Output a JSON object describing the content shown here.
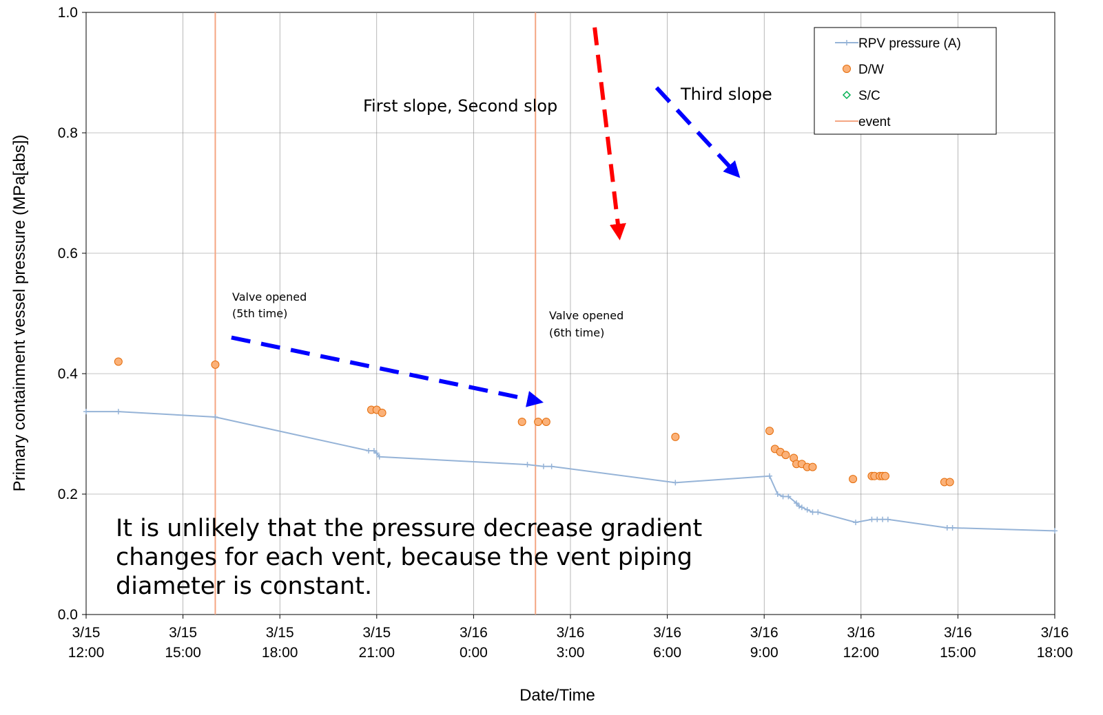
{
  "chart_data": {
    "type": "line",
    "title": "",
    "xlabel": "Date/Time",
    "ylabel": "Primary containment vessel pressure (MPa[abs])",
    "xlim": [
      "3/15 12:00",
      "3/16 18:00"
    ],
    "ylim": [
      0.0,
      1.0
    ],
    "grid": true,
    "legend_position": "top-right",
    "x_ticks": [
      {
        "date": "3/15",
        "time": "12:00"
      },
      {
        "date": "3/15",
        "time": "15:00"
      },
      {
        "date": "3/15",
        "time": "18:00"
      },
      {
        "date": "3/15",
        "time": "21:00"
      },
      {
        "date": "3/16",
        "time": "0:00"
      },
      {
        "date": "3/16",
        "time": "3:00"
      },
      {
        "date": "3/16",
        "time": "6:00"
      },
      {
        "date": "3/16",
        "time": "9:00"
      },
      {
        "date": "3/16",
        "time": "12:00"
      },
      {
        "date": "3/16",
        "time": "15:00"
      },
      {
        "date": "3/16",
        "time": "18:00"
      }
    ],
    "y_ticks": [
      "0.0",
      "0.2",
      "0.4",
      "0.6",
      "0.8",
      "1.0"
    ],
    "series": [
      {
        "name": "RPV pressure (A)",
        "style": "line-plus",
        "color": "#95b3d7",
        "points": [
          [
            "3/15 12:00",
            0.337
          ],
          [
            "3/15 13:00",
            0.337
          ],
          [
            "3/15 16:00",
            0.328
          ],
          [
            "3/15 20:45",
            0.272
          ],
          [
            "3/15 20:55",
            0.272
          ],
          [
            "3/15 21:00",
            0.268
          ],
          [
            "3/15 21:05",
            0.262
          ],
          [
            "3/16 1:40",
            0.249
          ],
          [
            "3/16 2:10",
            0.246
          ],
          [
            "3/16 2:25",
            0.246
          ],
          [
            "3/16 6:15",
            0.219
          ],
          [
            "3/16 9:10",
            0.23
          ],
          [
            "3/16 9:25",
            0.2
          ],
          [
            "3/16 9:35",
            0.196
          ],
          [
            "3/16 9:45",
            0.196
          ],
          [
            "3/16 10:00",
            0.185
          ],
          [
            "3/16 10:05",
            0.18
          ],
          [
            "3/16 10:10",
            0.178
          ],
          [
            "3/16 10:20",
            0.174
          ],
          [
            "3/16 10:30",
            0.17
          ],
          [
            "3/16 10:40",
            0.17
          ],
          [
            "3/16 11:50",
            0.153
          ],
          [
            "3/16 12:20",
            0.158
          ],
          [
            "3/16 12:30",
            0.158
          ],
          [
            "3/16 12:40",
            0.158
          ],
          [
            "3/16 12:50",
            0.158
          ],
          [
            "3/16 14:40",
            0.144
          ],
          [
            "3/16 14:50",
            0.144
          ],
          [
            "3/16 18:00",
            0.139
          ]
        ]
      },
      {
        "name": "D/W",
        "style": "circle",
        "color": "#fbb178",
        "stroke": "#e46c0a",
        "points": [
          [
            "3/15 13:00",
            0.42
          ],
          [
            "3/15 16:00",
            0.415
          ],
          [
            "3/15 20:50",
            0.34
          ],
          [
            "3/15 21:00",
            0.34
          ],
          [
            "3/15 21:10",
            0.335
          ],
          [
            "3/16 1:30",
            0.32
          ],
          [
            "3/16 2:00",
            0.32
          ],
          [
            "3/16 2:15",
            0.32
          ],
          [
            "3/16 6:15",
            0.295
          ],
          [
            "3/16 9:10",
            0.305
          ],
          [
            "3/16 9:20",
            0.275
          ],
          [
            "3/16 9:30",
            0.27
          ],
          [
            "3/16 9:40",
            0.265
          ],
          [
            "3/16 9:55",
            0.26
          ],
          [
            "3/16 10:00",
            0.25
          ],
          [
            "3/16 10:10",
            0.25
          ],
          [
            "3/16 10:20",
            0.245
          ],
          [
            "3/16 10:30",
            0.245
          ],
          [
            "3/16 11:45",
            0.225
          ],
          [
            "3/16 12:20",
            0.23
          ],
          [
            "3/16 12:25",
            0.23
          ],
          [
            "3/16 12:35",
            0.23
          ],
          [
            "3/16 12:40",
            0.23
          ],
          [
            "3/16 12:45",
            0.23
          ],
          [
            "3/16 14:35",
            0.22
          ],
          [
            "3/16 14:45",
            0.22
          ]
        ]
      },
      {
        "name": "S/C",
        "style": "diamond",
        "color": "#00b050",
        "points": []
      },
      {
        "name": "event",
        "style": "vertical-line",
        "color": "#f4a582",
        "points": [
          [
            "3/15 16:00",
            null
          ],
          [
            "3/16 1:55",
            null
          ]
        ]
      }
    ],
    "annotations": [
      {
        "text": [
          "Valve opened",
          "(5th time)"
        ],
        "size": "small"
      },
      {
        "text": [
          "Valve opened",
          "(6th time)"
        ],
        "size": "small"
      },
      {
        "text": [
          "First slope, Second slop"
        ],
        "size": "mid"
      },
      {
        "text": [
          "Third slope"
        ],
        "size": "mid"
      },
      {
        "text": [
          "It is unlikely that the pressure decrease gradient",
          "changes for each vent, because the vent piping",
          "diameter is constant."
        ],
        "size": "big"
      }
    ],
    "arrows": [
      {
        "color": "#0000ff",
        "from": [
          "3/15 16:30",
          0.46
        ],
        "to": [
          "3/16 1:55",
          0.355
        ]
      },
      {
        "color": "#ff0000",
        "from": [
          "3/16 3:45",
          0.975
        ],
        "to": [
          "3/16 4:30",
          0.635
        ]
      },
      {
        "color": "#0000ff",
        "from": [
          "3/16 5:40",
          0.875
        ],
        "to": [
          "3/16 8:05",
          0.735
        ]
      }
    ]
  }
}
